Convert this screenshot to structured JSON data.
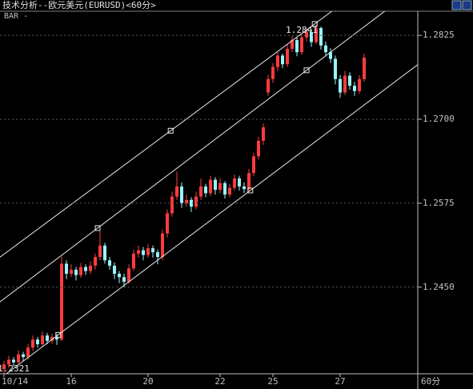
{
  "chart_data": {
    "type": "candlestick",
    "title": "技术分析--欧元美元(EURUSD)<60分>",
    "indicator_label": "BAR -",
    "period_label": "60分",
    "up_color": "#ff3c3c",
    "down_color": "#9af4ff",
    "grid": true,
    "ylim": [
      1.2321,
      1.2861
    ],
    "yticks": [
      {
        "value": 1.245,
        "label": "1.2450"
      },
      1.2575,
      {
        "value": 1.27,
        "label": "1.2700"
      },
      1.2825
    ],
    "categories": [
      "10/14",
      null,
      null,
      null,
      null,
      null,
      null,
      null,
      null,
      null,
      null,
      null,
      null,
      null,
      "16",
      null,
      null,
      null,
      null,
      null,
      null,
      null,
      null,
      null,
      null,
      null,
      null,
      null,
      null,
      null,
      "20",
      null,
      null,
      null,
      null,
      null,
      null,
      null,
      null,
      null,
      null,
      null,
      null,
      null,
      null,
      "22",
      null,
      null,
      null,
      null,
      null,
      null,
      null,
      null,
      null,
      null,
      "25",
      null,
      null,
      null,
      null,
      null,
      null,
      null,
      null,
      null,
      null,
      null,
      null,
      null,
      "27",
      null,
      null,
      null,
      null,
      null
    ],
    "ohlc": [
      [
        1.2328,
        1.234,
        1.2321,
        1.2335
      ],
      [
        1.2335,
        1.2348,
        1.233,
        1.2342
      ],
      [
        1.2342,
        1.2346,
        1.2332,
        1.2338
      ],
      [
        1.2338,
        1.2356,
        1.2334,
        1.235
      ],
      [
        1.235,
        1.2354,
        1.234,
        1.2346
      ],
      [
        1.2346,
        1.2365,
        1.2342,
        1.236
      ],
      [
        1.236,
        1.2378,
        1.2355,
        1.2372
      ],
      [
        1.2372,
        1.2376,
        1.236,
        1.2365
      ],
      [
        1.2365,
        1.2384,
        1.2362,
        1.2378
      ],
      [
        1.2378,
        1.2382,
        1.2365,
        1.237
      ],
      [
        1.237,
        1.2381,
        1.2366,
        1.2376
      ],
      [
        1.2376,
        1.238,
        1.2364,
        1.2372
      ],
      [
        1.2372,
        1.2495,
        1.237,
        1.2485
      ],
      [
        1.2485,
        1.249,
        1.2462,
        1.247
      ],
      [
        1.247,
        1.2484,
        1.2465,
        1.2476
      ],
      [
        1.2476,
        1.248,
        1.246,
        1.2468
      ],
      [
        1.2468,
        1.2486,
        1.2464,
        1.248
      ],
      [
        1.248,
        1.2484,
        1.2468,
        1.2474
      ],
      [
        1.2474,
        1.2488,
        1.247,
        1.2482
      ],
      [
        1.2482,
        1.25,
        1.2476,
        1.2495
      ],
      [
        1.2495,
        1.2538,
        1.249,
        1.2512
      ],
      [
        1.2512,
        1.2516,
        1.2485,
        1.249
      ],
      [
        1.249,
        1.2495,
        1.2476,
        1.2482
      ],
      [
        1.2482,
        1.2487,
        1.2462,
        1.247
      ],
      [
        1.247,
        1.2474,
        1.2456,
        1.2465
      ],
      [
        1.2465,
        1.247,
        1.245,
        1.2458
      ],
      [
        1.2458,
        1.2484,
        1.2455,
        1.2478
      ],
      [
        1.2478,
        1.2506,
        1.2474,
        1.25
      ],
      [
        1.25,
        1.2512,
        1.2494,
        1.2505
      ],
      [
        1.2505,
        1.251,
        1.249,
        1.2498
      ],
      [
        1.2498,
        1.2514,
        1.2494,
        1.2508
      ],
      [
        1.2508,
        1.2512,
        1.2494,
        1.2502
      ],
      [
        1.2502,
        1.2506,
        1.2484,
        1.2495
      ],
      [
        1.2495,
        1.2536,
        1.249,
        1.253
      ],
      [
        1.253,
        1.2566,
        1.2524,
        1.256
      ],
      [
        1.256,
        1.2592,
        1.2555,
        1.2585
      ],
      [
        1.2585,
        1.2622,
        1.258,
        1.26
      ],
      [
        1.26,
        1.2606,
        1.2568,
        1.2575
      ],
      [
        1.2575,
        1.2588,
        1.257,
        1.258
      ],
      [
        1.258,
        1.2584,
        1.2562,
        1.257
      ],
      [
        1.257,
        1.2592,
        1.2566,
        1.2585
      ],
      [
        1.2585,
        1.2612,
        1.258,
        1.26
      ],
      [
        1.26,
        1.2604,
        1.2584,
        1.259
      ],
      [
        1.259,
        1.2616,
        1.2586,
        1.261
      ],
      [
        1.261,
        1.2614,
        1.2588,
        1.2595
      ],
      [
        1.2595,
        1.2612,
        1.259,
        1.2605
      ],
      [
        1.2605,
        1.2608,
        1.2582,
        1.2588
      ],
      [
        1.2588,
        1.2604,
        1.2584,
        1.2598
      ],
      [
        1.2598,
        1.2618,
        1.2594,
        1.2612
      ],
      [
        1.2612,
        1.2616,
        1.2594,
        1.26
      ],
      [
        1.26,
        1.2606,
        1.259,
        1.2596
      ],
      [
        1.2596,
        1.2626,
        1.2592,
        1.262
      ],
      [
        1.262,
        1.265,
        1.2615,
        1.2645
      ],
      [
        1.2645,
        1.2674,
        1.264,
        1.2668
      ],
      [
        1.2668,
        1.2694,
        1.2662,
        1.2688
      ],
      [
        1.274,
        1.2766,
        1.2735,
        1.276
      ],
      [
        1.276,
        1.2784,
        1.2754,
        1.2778
      ],
      [
        1.2778,
        1.28,
        1.2772,
        1.2795
      ],
      [
        1.2795,
        1.2798,
        1.2776,
        1.2782
      ],
      [
        1.2782,
        1.2812,
        1.2778,
        1.2805
      ],
      [
        1.2805,
        1.2824,
        1.28,
        1.2818
      ],
      [
        1.2818,
        1.2822,
        1.2794,
        1.28
      ],
      [
        1.28,
        1.2828,
        1.2796,
        1.2822
      ],
      [
        1.2822,
        1.2835,
        1.2816,
        1.283
      ],
      [
        1.283,
        1.2834,
        1.2808,
        1.2815
      ],
      [
        1.2815,
        1.2841,
        1.2812,
        1.2836
      ],
      [
        1.2836,
        1.2838,
        1.2804,
        1.281
      ],
      [
        1.281,
        1.2816,
        1.2794,
        1.28
      ],
      [
        1.28,
        1.2806,
        1.2784,
        1.279
      ],
      [
        1.279,
        1.2795,
        1.2752,
        1.276
      ],
      [
        1.276,
        1.2766,
        1.2732,
        1.274
      ],
      [
        1.274,
        1.2772,
        1.2736,
        1.2765
      ],
      [
        1.2765,
        1.277,
        1.2744,
        1.275
      ],
      [
        1.275,
        1.2756,
        1.2735,
        1.2742
      ],
      [
        1.2742,
        1.2766,
        1.2738,
        1.276
      ],
      [
        1.276,
        1.2798,
        1.2756,
        1.2792
      ]
    ],
    "annotations": [
      {
        "value": 1.2841,
        "at": 62
      },
      {
        "value": 1.2321,
        "at": 2
      }
    ],
    "channels": [
      {
        "points": [
          [
            34.7,
            1.2683
          ],
          [
            64.7,
            1.2842
          ]
        ]
      },
      {
        "points": [
          [
            19.5,
            1.2538
          ],
          [
            63,
            1.2773
          ]
        ]
      },
      {
        "points": [
          [
            11.3,
            1.2379
          ],
          [
            51.3,
            1.2594
          ]
        ]
      }
    ]
  }
}
